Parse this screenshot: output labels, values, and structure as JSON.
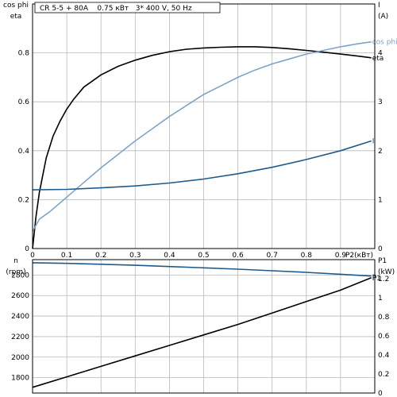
{
  "title": "CR 5-5 + 80A    0.75 кВт   3* 400 V, 50 Hz",
  "chart_data": [
    {
      "type": "line",
      "xlabel": "P2(кВт)",
      "xlim": [
        0,
        1.0
      ],
      "x_ticks": [
        "0",
        "0.1",
        "0.2",
        "0.3",
        "0.4",
        "0.5",
        "0.6",
        "0.7",
        "0.8",
        "0.9"
      ],
      "x_tick_values": [
        0,
        0.1,
        0.2,
        0.3,
        0.4,
        0.5,
        0.6,
        0.7,
        0.8,
        0.9
      ],
      "left_axis_labels": [
        "cos phi",
        "eta"
      ],
      "left_ylim": [
        0,
        1.0
      ],
      "left_ticks": [
        "0",
        "0.2",
        "0.4",
        "0.6",
        "0.8"
      ],
      "left_tick_values": [
        0,
        0.2,
        0.4,
        0.6,
        0.8
      ],
      "right_axis_labels": [
        "I",
        "(A)"
      ],
      "right_ylim": [
        0,
        5.0
      ],
      "right_ticks": [
        "0",
        "1",
        "2",
        "3",
        "4"
      ],
      "right_tick_values": [
        0,
        1,
        2,
        3,
        4
      ],
      "grid": true,
      "series": [
        {
          "name": "eta",
          "axis": "left",
          "color": "#000000",
          "x": [
            0.0,
            0.01,
            0.02,
            0.04,
            0.06,
            0.08,
            0.1,
            0.12,
            0.15,
            0.2,
            0.25,
            0.3,
            0.35,
            0.4,
            0.45,
            0.5,
            0.55,
            0.6,
            0.65,
            0.7,
            0.75,
            0.8,
            0.85,
            0.9,
            0.95,
            0.99
          ],
          "y": [
            0.0,
            0.13,
            0.23,
            0.37,
            0.46,
            0.52,
            0.57,
            0.61,
            0.66,
            0.71,
            0.745,
            0.77,
            0.79,
            0.805,
            0.815,
            0.82,
            0.823,
            0.825,
            0.825,
            0.822,
            0.817,
            0.81,
            0.803,
            0.795,
            0.787,
            0.78
          ]
        },
        {
          "name": "cos phi",
          "axis": "left",
          "color": "#7fa3c7",
          "x": [
            0.0,
            0.02,
            0.05,
            0.1,
            0.15,
            0.2,
            0.25,
            0.3,
            0.35,
            0.4,
            0.45,
            0.5,
            0.55,
            0.6,
            0.65,
            0.7,
            0.75,
            0.8,
            0.85,
            0.9,
            0.95,
            0.99
          ],
          "y": [
            0.07,
            0.12,
            0.15,
            0.21,
            0.27,
            0.33,
            0.385,
            0.44,
            0.49,
            0.54,
            0.585,
            0.63,
            0.665,
            0.7,
            0.73,
            0.755,
            0.775,
            0.795,
            0.81,
            0.825,
            0.837,
            0.845
          ]
        },
        {
          "name": "I",
          "axis": "right",
          "color": "#1f5a8c",
          "x": [
            0.0,
            0.1,
            0.2,
            0.3,
            0.4,
            0.5,
            0.6,
            0.7,
            0.8,
            0.9,
            0.99
          ],
          "y": [
            1.2,
            1.21,
            1.24,
            1.28,
            1.34,
            1.42,
            1.53,
            1.66,
            1.82,
            2.0,
            2.2
          ]
        }
      ],
      "annotations": [
        "cos phi",
        "eta",
        "I"
      ]
    },
    {
      "type": "line",
      "xlim": [
        0,
        1.0
      ],
      "left_axis_labels": [
        "n",
        "(rpm)"
      ],
      "left_ylim": [
        1650,
        2950
      ],
      "left_ticks": [
        "1800",
        "2000",
        "2200",
        "2400",
        "2600",
        "2800"
      ],
      "left_tick_values": [
        1800,
        2000,
        2200,
        2400,
        2600,
        2800
      ],
      "right_axis_labels": [
        "P1",
        "(kW)"
      ],
      "right_ylim": [
        0,
        1.4
      ],
      "right_ticks": [
        "0",
        "0.2",
        "0.4",
        "0.6",
        "0.8",
        "1",
        "1.2"
      ],
      "right_tick_values": [
        0,
        0.2,
        0.4,
        0.6,
        0.8,
        1.0,
        1.2
      ],
      "grid": true,
      "series": [
        {
          "name": "n",
          "axis": "left",
          "color": "#1f5a8c",
          "x": [
            0.0,
            0.1,
            0.2,
            0.3,
            0.4,
            0.5,
            0.6,
            0.7,
            0.8,
            0.9,
            0.99
          ],
          "y": [
            2920,
            2914,
            2905,
            2895,
            2883,
            2870,
            2857,
            2842,
            2826,
            2808,
            2790
          ]
        },
        {
          "name": "P1",
          "axis": "right",
          "color": "#000000",
          "x": [
            0.0,
            0.1,
            0.2,
            0.3,
            0.4,
            0.5,
            0.6,
            0.7,
            0.8,
            0.9,
            0.99
          ],
          "y": [
            0.06,
            0.17,
            0.28,
            0.39,
            0.5,
            0.61,
            0.72,
            0.84,
            0.96,
            1.08,
            1.21
          ]
        }
      ],
      "annotations": [
        "n",
        "P1"
      ]
    }
  ]
}
